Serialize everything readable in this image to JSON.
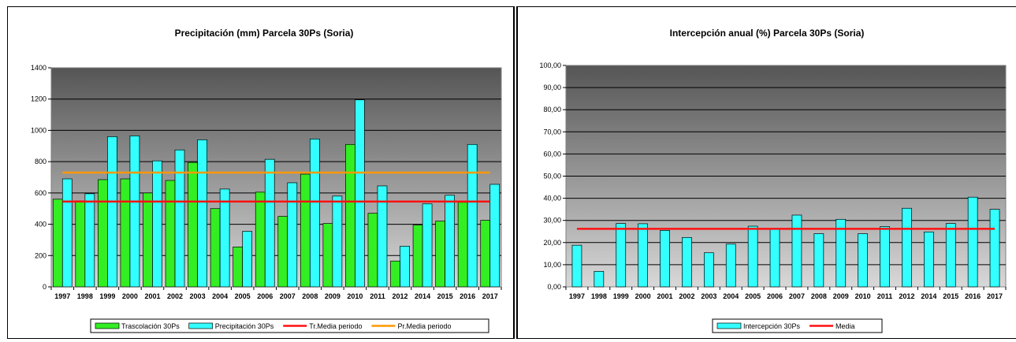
{
  "colors": {
    "trascolacion": "#33ee22",
    "precipitacion": "#33ffff",
    "tr_media": "#ff1111",
    "pr_media": "#ff9900",
    "interception": "#33ffff",
    "media": "#ff1111",
    "plot_top": "#555555",
    "plot_bottom": "#d8d8d8"
  },
  "chart_data": [
    {
      "type": "bar",
      "title": "Precipitación (mm) Parcela 30Ps (Soria)",
      "categories": [
        "1997",
        "1998",
        "1999",
        "2000",
        "2001",
        "2002",
        "2003",
        "2004",
        "2005",
        "2006",
        "2007",
        "2008",
        "2009",
        "2010",
        "2011",
        "2012",
        "2014",
        "2015",
        "2016",
        "2017"
      ],
      "series": [
        {
          "name": "Trascolación  30Ps",
          "kind": "bar",
          "values": [
            560,
            550,
            685,
            690,
            600,
            680,
            795,
            500,
            255,
            605,
            450,
            720,
            405,
            910,
            470,
            165,
            395,
            420,
            540,
            425
          ]
        },
        {
          "name": "Precipitación 30Ps",
          "kind": "bar",
          "values": [
            690,
            595,
            960,
            965,
            805,
            875,
            940,
            625,
            355,
            815,
            665,
            945,
            580,
            1195,
            645,
            260,
            530,
            585,
            910,
            655
          ]
        },
        {
          "name": "Tr.Media periodo",
          "kind": "line",
          "value": 545
        },
        {
          "name": "Pr.Media periodo",
          "kind": "line",
          "value": 730
        }
      ],
      "ylim": [
        0,
        1400
      ],
      "yticks": [
        "0",
        "200",
        "400",
        "600",
        "800",
        "1000",
        "1200",
        "1400"
      ],
      "grid": true,
      "legend_position": "bottom"
    },
    {
      "type": "bar",
      "title": "Intercepción anual (%) Parcela 30Ps (Soria)",
      "categories": [
        "1997",
        "1998",
        "1999",
        "2000",
        "2001",
        "2002",
        "2003",
        "2004",
        "2005",
        "2006",
        "2007",
        "2008",
        "2009",
        "2010",
        "2011",
        "2012",
        "2014",
        "2015",
        "2016",
        "2017"
      ],
      "series": [
        {
          "name": "Intercepción  30Ps",
          "kind": "bar",
          "values": [
            18.8,
            7.0,
            28.6,
            28.5,
            25.5,
            22.3,
            15.4,
            19.3,
            27.4,
            26.0,
            32.4,
            24.0,
            30.5,
            24.0,
            27.2,
            35.5,
            24.8,
            28.6,
            40.5,
            35.0
          ]
        },
        {
          "name": "Media",
          "kind": "line",
          "value": 26.2
        }
      ],
      "ylim": [
        0,
        100
      ],
      "yticks": [
        "0,00",
        "10,00",
        "20,00",
        "30,00",
        "40,00",
        "50,00",
        "60,00",
        "70,00",
        "80,00",
        "90,00",
        "100,00"
      ],
      "grid": true,
      "legend_position": "bottom"
    }
  ]
}
